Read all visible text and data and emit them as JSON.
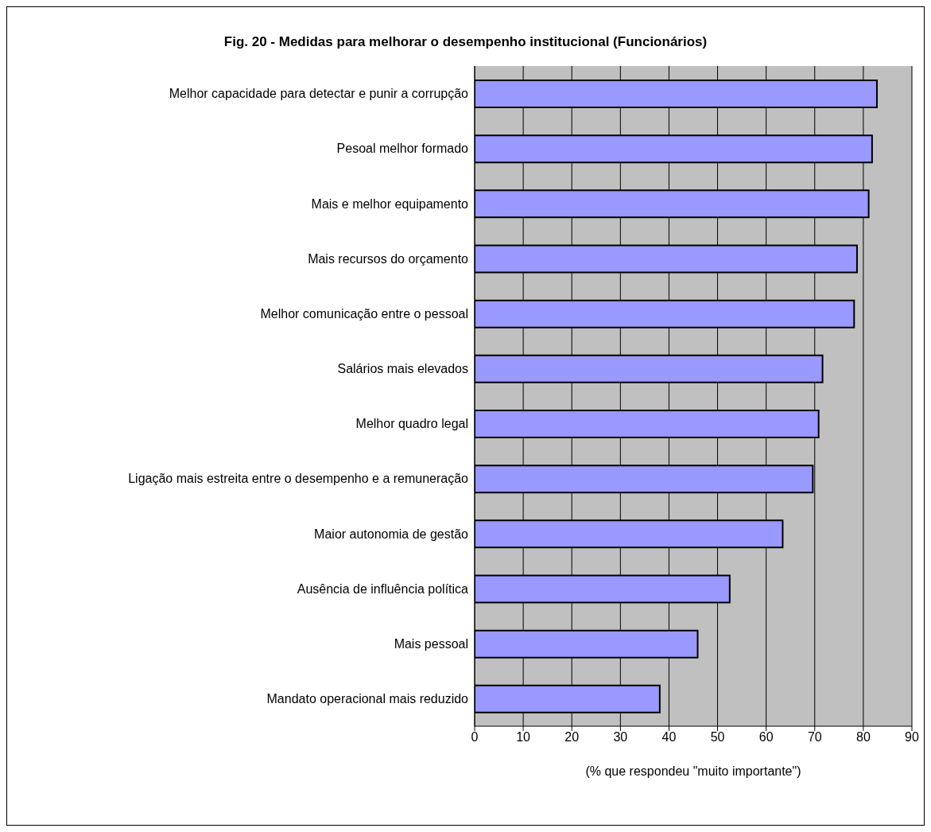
{
  "chart_data": {
    "type": "bar",
    "orientation": "horizontal",
    "title": "Fig. 20 - Medidas para melhorar o desempenho institucional (Funcionários)",
    "xlabel": "(% que respondeu \"muito importante\")",
    "categories": [
      "Melhor capacidade para detectar e punir a corrupção",
      "Pesoal melhor formado",
      "Mais e melhor equipamento",
      "Mais recursos do orçamento",
      "Melhor comunicação entre o pessoal",
      "Salários mais elevados",
      "Melhor quadro legal",
      "Ligação mais estreita entre o desempenho e a remuneração",
      "Maior autonomia de gestão",
      "Ausência de influência política",
      "Mais pessoal",
      "Mandato operacional mais reduzido"
    ],
    "values": [
      82.8,
      81.8,
      81.1,
      78.7,
      78.1,
      71.6,
      70.8,
      69.6,
      63.4,
      52.5,
      45.9,
      38.1
    ],
    "color": "#9999ff",
    "xlim": [
      0,
      90
    ],
    "xticks": [
      0,
      10,
      20,
      30,
      40,
      50,
      60,
      70,
      80,
      90
    ],
    "grid": "x",
    "legend": false
  }
}
